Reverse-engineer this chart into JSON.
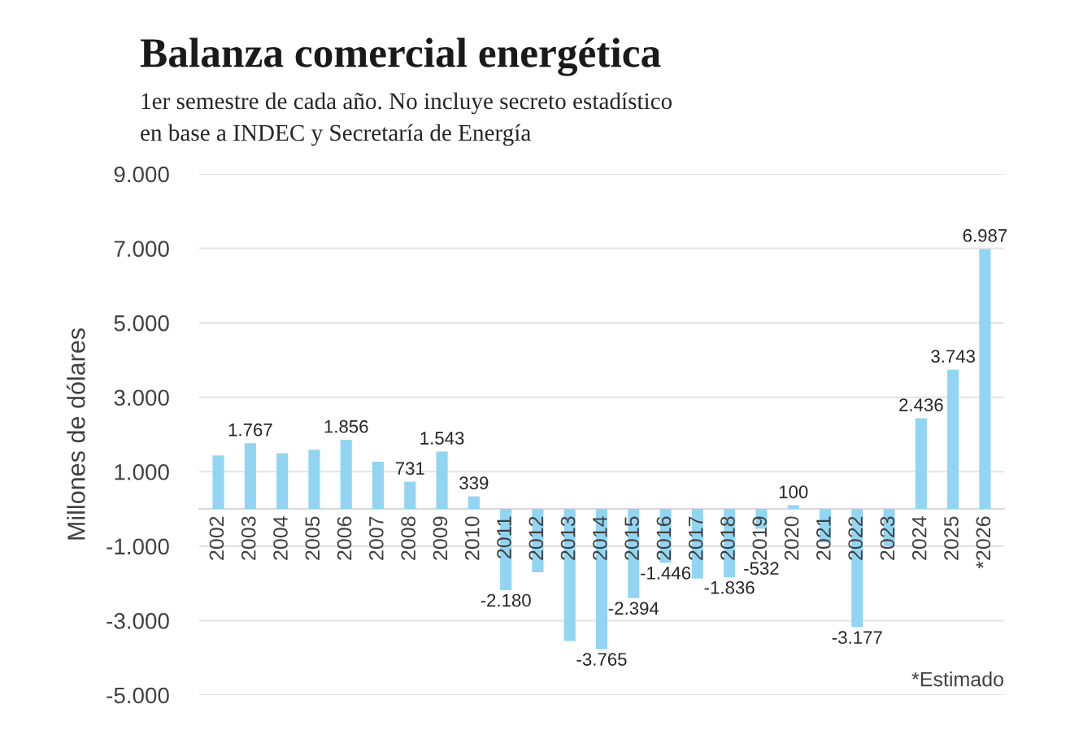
{
  "chart_data": {
    "type": "bar",
    "title": "Balanza comercial energética",
    "subtitle": "1er semestre de cada año. No incluye secreto estadístico",
    "annotations": [
      "en base a INDEC y Secretaría de Energía",
      "*Estimado"
    ],
    "ylabel": "Millones de dólares",
    "categories": [
      "2002",
      "2003",
      "2004",
      "2005",
      "2006",
      "2007",
      "2008",
      "2009",
      "2010",
      "2011",
      "2012",
      "2013",
      "2014",
      "2015",
      "2016",
      "2017",
      "2018",
      "2019",
      "2020",
      "2021",
      "2022",
      "2023",
      "2024",
      "2025",
      "*2026"
    ],
    "values": [
      1440,
      1767,
      1500,
      1590,
      1856,
      1270,
      731,
      1543,
      339,
      -2180,
      -1700,
      -3550,
      -3765,
      -2394,
      -1446,
      -1870,
      -1836,
      -532,
      100,
      -900,
      -3177,
      -1000,
      2436,
      3743,
      6987
    ],
    "value_labels": [
      null,
      "1.767",
      null,
      null,
      "1.856",
      null,
      "731",
      "1.543",
      "339",
      "-2.180",
      null,
      null,
      "-3.765",
      "-2.394",
      "-1.446",
      null,
      "-1.836",
      "-532",
      "100",
      null,
      "-3.177",
      null,
      "2.436",
      "3.743",
      "6.987"
    ],
    "color": "#92d5f3",
    "ylim": [
      -5000,
      9000
    ],
    "yticks": [
      {
        "value": -5000,
        "label": "-5.000"
      },
      {
        "value": -3000,
        "label": "-3.000"
      },
      {
        "value": -1000,
        "label": "-1.000"
      },
      {
        "value": 1000,
        "label": "1.000"
      },
      {
        "value": 3000,
        "label": "3.000"
      },
      {
        "value": 5000,
        "label": "5.000"
      },
      {
        "value": 7000,
        "label": "7.000"
      },
      {
        "value": 9000,
        "label": "9.000"
      }
    ],
    "grid": "y"
  }
}
